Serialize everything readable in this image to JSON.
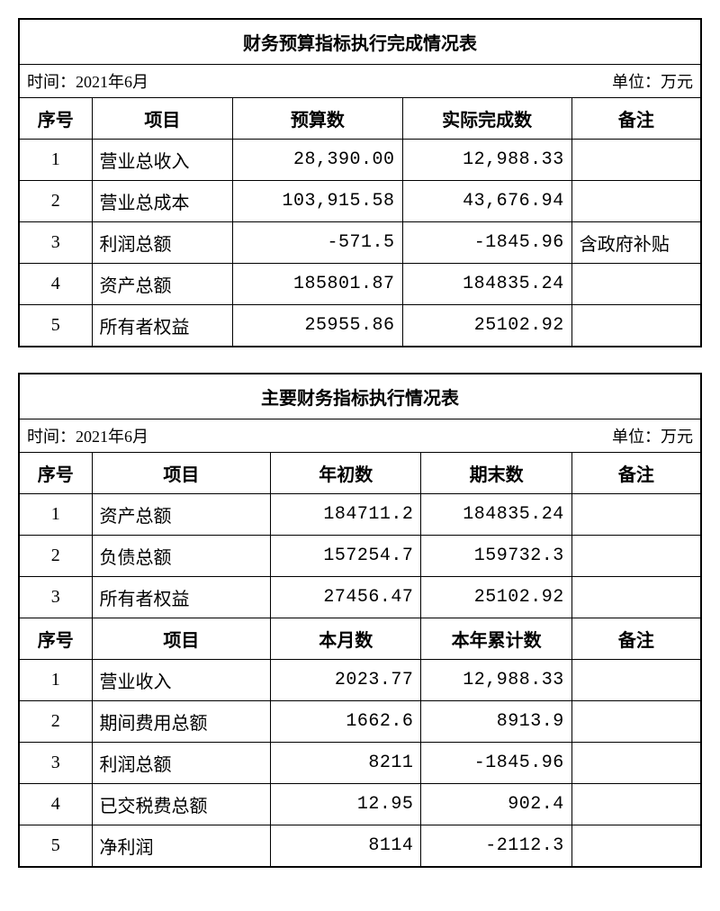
{
  "table1": {
    "title": "财务预算指标执行完成情况表",
    "time_label": "时间：2021年6月",
    "unit_label": "单位：万元",
    "headers": {
      "seq": "序号",
      "item": "项目",
      "budget": "预算数",
      "actual": "实际完成数",
      "remark": "备注"
    },
    "rows": [
      {
        "seq": "1",
        "item": "营业总收入",
        "budget": "28,390.00",
        "actual": "12,988.33",
        "remark": ""
      },
      {
        "seq": "2",
        "item": "营业总成本",
        "budget": "103,915.58",
        "actual": "43,676.94",
        "remark": ""
      },
      {
        "seq": "3",
        "item": "利润总额",
        "budget": "-571.5",
        "actual": "-1845.96",
        "remark": "含政府补贴"
      },
      {
        "seq": "4",
        "item": "资产总额",
        "budget": "185801.87",
        "actual": "184835.24",
        "remark": ""
      },
      {
        "seq": "5",
        "item": "所有者权益",
        "budget": "25955.86",
        "actual": "25102.92",
        "remark": ""
      }
    ],
    "col_widths": {
      "seq": 60,
      "item": 150,
      "budget": 180,
      "actual": 180,
      "remark": 120
    }
  },
  "table2": {
    "title": "主要财务指标执行情况表",
    "time_label": "时间：2021年6月",
    "unit_label": "单位：万元",
    "headers_a": {
      "seq": "序号",
      "item": "项目",
      "c1": "年初数",
      "c2": "期末数",
      "remark": "备注"
    },
    "rows_a": [
      {
        "seq": "1",
        "item": "资产总额",
        "c1": "184711.2",
        "c2": "184835.24",
        "remark": ""
      },
      {
        "seq": "2",
        "item": "负债总额",
        "c1": "157254.7",
        "c2": "159732.3",
        "remark": ""
      },
      {
        "seq": "3",
        "item": "所有者权益",
        "c1": "27456.47",
        "c2": "25102.92",
        "remark": ""
      }
    ],
    "headers_b": {
      "seq": "序号",
      "item": "项目",
      "c1": "本月数",
      "c2": "本年累计数",
      "remark": "备注"
    },
    "rows_b": [
      {
        "seq": "1",
        "item": "营业收入",
        "c1": "2023.77",
        "c2": "12,988.33",
        "remark": ""
      },
      {
        "seq": "2",
        "item": "期间费用总额",
        "c1": "1662.6",
        "c2": "8913.9",
        "remark": ""
      },
      {
        "seq": "3",
        "item": "利润总额",
        "c1": "8211",
        "c2": "-1845.96",
        "remark": ""
      },
      {
        "seq": "4",
        "item": "已交税费总额",
        "c1": "12.95",
        "c2": "902.4",
        "remark": ""
      },
      {
        "seq": "5",
        "item": "净利润",
        "c1": "8114",
        "c2": "-2112.3",
        "remark": ""
      }
    ],
    "col_widths": {
      "seq": 60,
      "item": 190,
      "c1": 160,
      "c2": 160,
      "remark": 120
    }
  }
}
